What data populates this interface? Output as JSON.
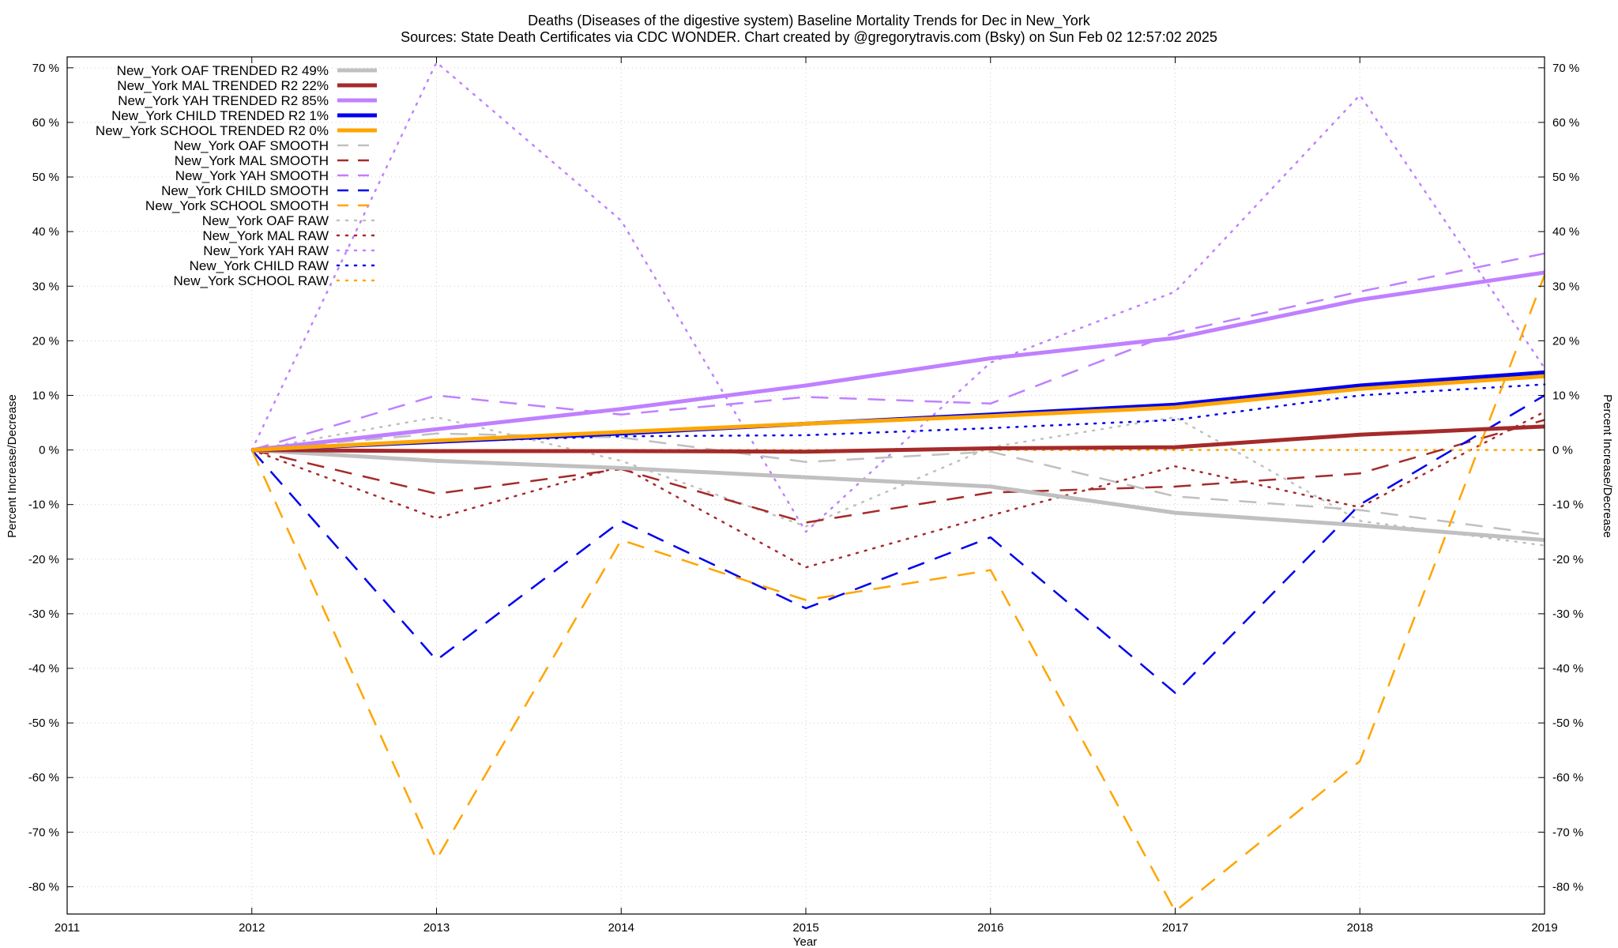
{
  "chart_data": {
    "type": "line",
    "title": "Deaths (Diseases of the digestive system)  Baseline Mortality Trends for Dec in New_York",
    "subtitle": "Sources: State Death Certificates via CDC WONDER.               Chart created by @gregorytravis.com (Bsky) on Sun Feb 02 12:57:02 2025",
    "xlabel": "Year",
    "ylabel": "Percent Increase/Decrease",
    "y2label": "Percent Increase/Decrease",
    "xlim": [
      2011,
      2019
    ],
    "ylim": [
      -85,
      72
    ],
    "x_ticks": [
      "2011",
      "2012",
      "2013",
      "2014",
      "2015",
      "2016",
      "2017",
      "2018",
      "2019"
    ],
    "y_ticks": [
      "70 %",
      "60 %",
      "50 %",
      "40 %",
      "30 %",
      "20 %",
      "10 %",
      "0 %",
      "-10 %",
      "-20 %",
      "-30 %",
      "-40 %",
      "-50 %",
      "-60 %",
      "-70 %",
      "-80 %"
    ],
    "grid": true,
    "legend_position": "top-left",
    "x": [
      2012,
      2013,
      2014,
      2015,
      2016,
      2017,
      2018,
      2019
    ],
    "series": [
      {
        "name": "New_York OAF TRENDED R2  49%",
        "color": "#c0c0c0",
        "style": "solid",
        "width": 5,
        "values": [
          0,
          -2,
          -3.3,
          -5,
          -6.7,
          -11.5,
          -13.8,
          -16.5
        ]
      },
      {
        "name": "New_York MAL TRENDED R2  22%",
        "color": "#a52a2a",
        "style": "solid",
        "width": 5,
        "values": [
          0,
          -0.2,
          -0.2,
          -0.3,
          0.3,
          0.5,
          2.8,
          4.3
        ]
      },
      {
        "name": "New_York YAH TRENDED R2  85%",
        "color": "#c080ff",
        "style": "solid",
        "width": 5,
        "values": [
          0,
          3.8,
          7.5,
          11.8,
          16.8,
          20.5,
          27.5,
          32.5
        ]
      },
      {
        "name": "New_York CHILD TRENDED R2   1%",
        "color": "#0000ee",
        "style": "solid",
        "width": 5,
        "values": [
          0,
          1.5,
          3,
          4.8,
          6.5,
          8.3,
          11.8,
          14.2
        ]
      },
      {
        "name": "New_York SCHOOL TRENDED R2   0%",
        "color": "#ffa500",
        "style": "solid",
        "width": 5,
        "values": [
          0,
          1.7,
          3.3,
          4.8,
          6.2,
          7.8,
          11.2,
          13.5
        ]
      },
      {
        "name": "New_York OAF SMOOTH",
        "color": "#c0c0c0",
        "style": "dashed",
        "width": 2.5,
        "values": [
          0,
          3,
          2.3,
          -2.2,
          -0.3,
          -8.5,
          -11,
          -15.5
        ]
      },
      {
        "name": "New_York MAL SMOOTH",
        "color": "#a52a2a",
        "style": "dashed",
        "width": 2.5,
        "values": [
          0,
          -8,
          -3.5,
          -13.3,
          -7.8,
          -6.7,
          -4.3,
          5.5
        ]
      },
      {
        "name": "New_York YAH SMOOTH",
        "color": "#c080ff",
        "style": "dashed",
        "width": 2.5,
        "values": [
          0,
          10,
          6.5,
          9.7,
          8.5,
          21.5,
          29,
          36
        ]
      },
      {
        "name": "New_York CHILD SMOOTH",
        "color": "#0000ee",
        "style": "dashed",
        "width": 2.5,
        "values": [
          0,
          -38.5,
          -13,
          -29,
          -16,
          -44.5,
          -10,
          10
        ]
      },
      {
        "name": "New_York SCHOOL SMOOTH",
        "color": "#ffa500",
        "style": "dashed",
        "width": 2.5,
        "values": [
          0,
          -75,
          -16.5,
          -27.5,
          -22,
          -84.5,
          -57,
          32
        ]
      },
      {
        "name": "New_York OAF RAW",
        "color": "#c0c0c0",
        "style": "dotted",
        "width": 2.5,
        "values": [
          0,
          6,
          -2,
          -14,
          0.5,
          6,
          -13,
          -17.5
        ]
      },
      {
        "name": "New_York MAL RAW",
        "color": "#a52a2a",
        "style": "dotted",
        "width": 2.5,
        "values": [
          0,
          -12.5,
          -3,
          -21.5,
          -12,
          -3,
          -10.5,
          7
        ]
      },
      {
        "name": "New_York YAH RAW",
        "color": "#c080ff",
        "style": "dotted",
        "width": 2.5,
        "values": [
          0,
          71,
          42,
          -15,
          16,
          29,
          65,
          15
        ]
      },
      {
        "name": "New_York CHILD RAW",
        "color": "#0000ee",
        "style": "dotted",
        "width": 2.5,
        "values": [
          0,
          1.5,
          2.5,
          2.7,
          4,
          5.5,
          10,
          12
        ]
      },
      {
        "name": "New_York SCHOOL RAW",
        "color": "#ffa500",
        "style": "dotted",
        "width": 2.5,
        "values": [
          0,
          0,
          0,
          0,
          0,
          0,
          0,
          0
        ]
      }
    ]
  }
}
